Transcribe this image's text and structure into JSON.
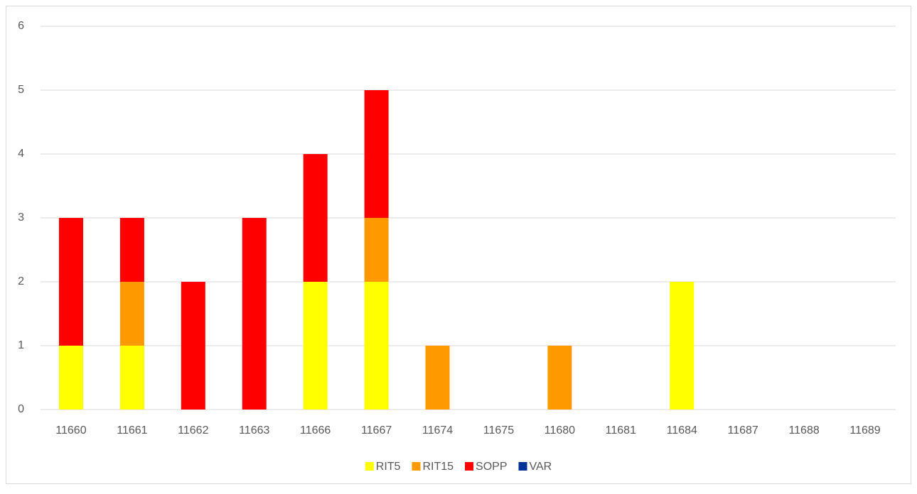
{
  "chart_data": {
    "type": "bar",
    "stacked": true,
    "categories": [
      "11660",
      "11661",
      "11662",
      "11663",
      "11666",
      "11667",
      "11674",
      "11675",
      "11680",
      "11681",
      "11684",
      "11687",
      "11688",
      "11689"
    ],
    "series": [
      {
        "name": "RIT5",
        "color": "#ffff00",
        "values": [
          1,
          1,
          0,
          0,
          2,
          2,
          0,
          0,
          0,
          0,
          2,
          0,
          0,
          0
        ]
      },
      {
        "name": "RIT15",
        "color": "#ff9900",
        "values": [
          0,
          1,
          0,
          0,
          0,
          1,
          1,
          0,
          1,
          0,
          0,
          0,
          0,
          0
        ]
      },
      {
        "name": "SOPP",
        "color": "#ff0000",
        "values": [
          2,
          1,
          2,
          3,
          2,
          2,
          0,
          0,
          0,
          0,
          0,
          0,
          0,
          0
        ]
      },
      {
        "name": "VAR",
        "color": "#003399",
        "values": [
          0,
          0,
          0,
          0,
          0,
          0,
          0,
          0,
          0,
          0,
          0,
          0,
          0,
          0
        ]
      }
    ],
    "ylim": [
      0,
      6
    ],
    "yticks": [
      0,
      1,
      2,
      3,
      4,
      5,
      6
    ],
    "grid": true,
    "legend": "bottom"
  }
}
